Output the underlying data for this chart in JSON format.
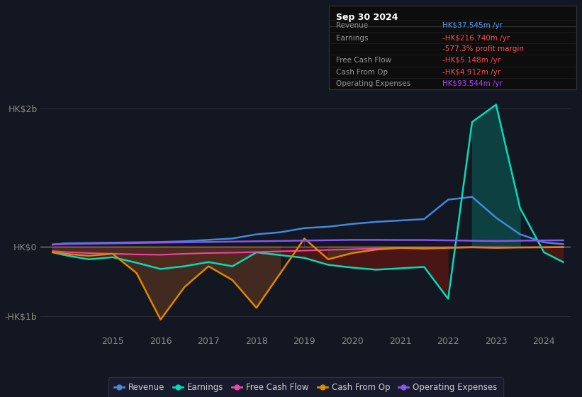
{
  "bg_color": "#131722",
  "plot_bg_color": "#131722",
  "grid_color": "#2a2e39",
  "zero_line_color": "#888888",
  "title_box": {
    "date": "Sep 30 2024",
    "rows": [
      {
        "label": "Revenue",
        "value": "HK$37.545m /yr",
        "value_color": "#4a9eff"
      },
      {
        "label": "Earnings",
        "value": "-HK$216.740m /yr",
        "value_color": "#ff4444"
      },
      {
        "label": "",
        "value": "-577.3% profit margin",
        "value_color": "#ff4444"
      },
      {
        "label": "Free Cash Flow",
        "value": "-HK$5.148m /yr",
        "value_color": "#ff4444"
      },
      {
        "label": "Cash From Op",
        "value": "-HK$4.912m /yr",
        "value_color": "#ff4444"
      },
      {
        "label": "Operating Expenses",
        "value": "HK$93.544m /yr",
        "value_color": "#aa44ff"
      }
    ]
  },
  "yticks_labels": [
    "HK$2b",
    "HK$0",
    "-HK$1b"
  ],
  "yticks_values": [
    2000,
    0,
    -1000
  ],
  "ylim": [
    -1250,
    2300
  ],
  "years": [
    2013.75,
    2014.0,
    2014.5,
    2015.0,
    2015.5,
    2016.0,
    2016.5,
    2017.0,
    2017.5,
    2018.0,
    2018.5,
    2019.0,
    2019.5,
    2020.0,
    2020.5,
    2021.0,
    2021.5,
    2022.0,
    2022.5,
    2023.0,
    2023.5,
    2024.0,
    2024.4
  ],
  "revenue": [
    30,
    50,
    55,
    60,
    65,
    70,
    80,
    100,
    120,
    180,
    210,
    270,
    290,
    330,
    360,
    380,
    400,
    680,
    720,
    420,
    180,
    65,
    38
  ],
  "earnings": [
    -80,
    -120,
    -180,
    -150,
    -230,
    -320,
    -280,
    -220,
    -280,
    -80,
    -120,
    -160,
    -260,
    -300,
    -330,
    -310,
    -290,
    -750,
    1800,
    2050,
    560,
    -80,
    -220
  ],
  "free_cash_flow": [
    -60,
    -75,
    -90,
    -100,
    -110,
    -115,
    -100,
    -90,
    -85,
    -75,
    -65,
    -55,
    -45,
    -35,
    -25,
    -18,
    -12,
    -8,
    -4,
    -6,
    -8,
    -6,
    -5
  ],
  "cash_from_op": [
    -80,
    -100,
    -130,
    -100,
    -380,
    -1050,
    -580,
    -280,
    -480,
    -880,
    -380,
    120,
    -180,
    -90,
    -40,
    -15,
    -25,
    -15,
    -8,
    -15,
    -10,
    -8,
    -5
  ],
  "operating_expenses": [
    35,
    40,
    45,
    50,
    55,
    60,
    65,
    70,
    75,
    80,
    85,
    90,
    95,
    100,
    100,
    98,
    98,
    93,
    88,
    83,
    88,
    92,
    94
  ],
  "colors": {
    "revenue": "#4488dd",
    "earnings": "#00ddbb",
    "free_cash_flow": "#ee44aa",
    "cash_from_op": "#dd8800",
    "operating_expenses": "#8855ee"
  },
  "fill_earnings_pos_color": "#0d4040",
  "fill_earnings_neg_color": "#4a1515",
  "xtick_years": [
    2015,
    2016,
    2017,
    2018,
    2019,
    2020,
    2021,
    2022,
    2023,
    2024
  ],
  "legend_items": [
    {
      "label": "Revenue",
      "color": "#4488dd"
    },
    {
      "label": "Earnings",
      "color": "#00ddbb"
    },
    {
      "label": "Free Cash Flow",
      "color": "#ee44aa"
    },
    {
      "label": "Cash From Op",
      "color": "#dd8800"
    },
    {
      "label": "Operating Expenses",
      "color": "#8855ee"
    }
  ]
}
